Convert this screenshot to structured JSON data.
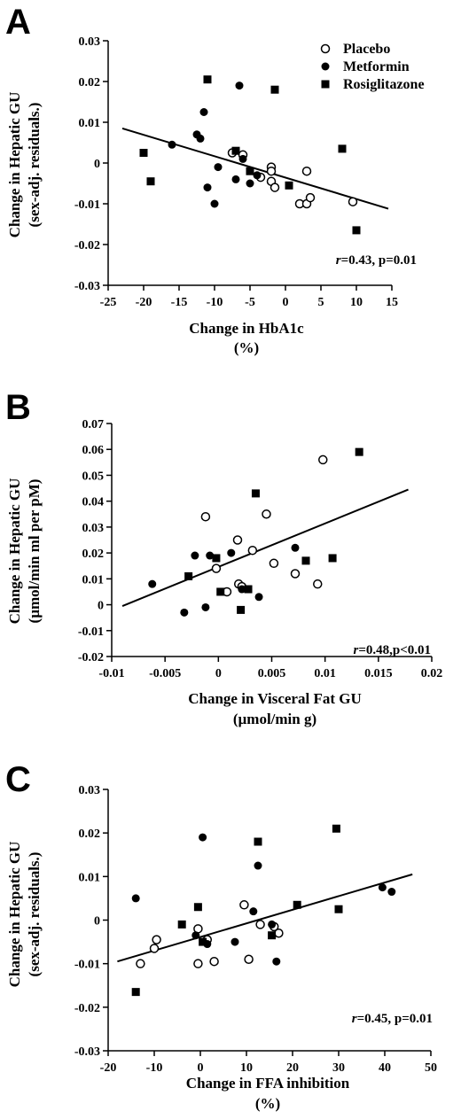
{
  "legend": {
    "placement": "top-right",
    "entries": [
      {
        "name": "Placebo",
        "marker": "open-circle"
      },
      {
        "name": "Metformin",
        "marker": "filled-circle"
      },
      {
        "name": "Rosiglitazone",
        "marker": "filled-square"
      }
    ]
  },
  "colors": {
    "ink": "#000000",
    "background": "#ffffff"
  },
  "chart_data": [
    {
      "panel": "A",
      "type": "scatter",
      "xlabel": "Change in HbA1c",
      "xunit": "(%)",
      "ylabel": "Change in Hepatic GU",
      "yunit": "(sex-adj. residuals.)",
      "xlim": [
        -25,
        15
      ],
      "ylim": [
        -0.03,
        0.03
      ],
      "xticks": [
        -25,
        -20,
        -15,
        -10,
        -5,
        0,
        5,
        10,
        15
      ],
      "yticks": [
        -0.03,
        -0.02,
        -0.01,
        0,
        0.01,
        0.02,
        0.03
      ],
      "xtick_labels": [
        "-25",
        "-20",
        "-15",
        "-10",
        "-5",
        "0",
        "5",
        "10",
        "15"
      ],
      "ytick_labels": [
        "-0.03",
        "-0.02",
        "-0.01",
        "0",
        "0.01",
        "0.02",
        "0.03"
      ],
      "grid": false,
      "annotation_r": "r",
      "annotation_rest": "=0.43, p=0.01",
      "fit_line": {
        "x": [
          -23,
          14.5
        ],
        "y": [
          0.0085,
          -0.0112
        ]
      },
      "series": [
        {
          "name": "Placebo",
          "marker": "open-circle",
          "x": [
            -7.5,
            -6,
            -2,
            -2,
            -2,
            -1.5,
            -3.5,
            2,
            3,
            3,
            3.5,
            9.5
          ],
          "y": [
            0.0025,
            0.002,
            -0.001,
            -0.002,
            -0.0045,
            -0.006,
            -0.0035,
            -0.01,
            -0.002,
            -0.01,
            -0.0085,
            -0.0095
          ]
        },
        {
          "name": "Metformin",
          "marker": "filled-circle",
          "x": [
            -16,
            -12.5,
            -12,
            -11.5,
            -11,
            -10,
            -9.5,
            -7,
            -6.5,
            -6,
            -5,
            -4
          ],
          "y": [
            0.0045,
            0.007,
            0.006,
            0.0125,
            -0.006,
            -0.01,
            -0.001,
            -0.004,
            0.019,
            0.001,
            -0.005,
            -0.003
          ]
        },
        {
          "name": "Rosiglitazone",
          "marker": "filled-square",
          "x": [
            -20,
            -19,
            -11,
            -7,
            -5,
            -1.5,
            0.5,
            8,
            10
          ],
          "y": [
            0.0025,
            -0.0045,
            0.0205,
            0.003,
            -0.002,
            0.018,
            -0.0055,
            0.0035,
            -0.0165
          ]
        }
      ]
    },
    {
      "panel": "B",
      "type": "scatter",
      "xlabel": "Change in Visceral Fat GU",
      "xunit": "(µmol/min g)",
      "ylabel": "Change in Hepatic GU",
      "yunit": "(µmol/min ml per pM)",
      "xlim": [
        -0.01,
        0.02
      ],
      "ylim": [
        -0.02,
        0.07
      ],
      "xticks": [
        -0.01,
        -0.005,
        0,
        0.005,
        0.01,
        0.015,
        0.02
      ],
      "yticks": [
        -0.02,
        -0.01,
        0,
        0.01,
        0.02,
        0.03,
        0.04,
        0.05,
        0.06,
        0.07
      ],
      "xtick_labels": [
        "-0.01",
        "-0.005",
        "0",
        "0.005",
        "0.01",
        "0.015",
        "0.02"
      ],
      "ytick_labels": [
        "-0.02",
        "-0.01",
        "0",
        "0.01",
        "0.02",
        "0.03",
        "0.04",
        "0.05",
        "0.06",
        "0.07"
      ],
      "grid": false,
      "annotation_r": "r",
      "annotation_rest": "=0.48,p<0.01",
      "fit_line": {
        "x": [
          -0.009,
          0.0178
        ],
        "y": [
          -0.0005,
          0.0445
        ]
      },
      "series": [
        {
          "name": "Placebo",
          "marker": "open-circle",
          "x": [
            -0.0012,
            -0.0002,
            0.0008,
            0.0018,
            0.0019,
            0.0022,
            0.0032,
            0.0045,
            0.0052,
            0.0072,
            0.0093,
            0.0098
          ],
          "y": [
            0.034,
            0.014,
            0.005,
            0.025,
            0.008,
            0.007,
            0.021,
            0.035,
            0.016,
            0.012,
            0.008,
            0.056
          ]
        },
        {
          "name": "Metformin",
          "marker": "filled-circle",
          "x": [
            -0.0062,
            -0.0032,
            -0.0022,
            -0.0012,
            -0.0008,
            0.0012,
            0.0022,
            0.0038,
            0.0072
          ],
          "y": [
            0.008,
            -0.003,
            0.019,
            -0.001,
            0.019,
            0.02,
            0.006,
            0.003,
            0.022
          ]
        },
        {
          "name": "Rosiglitazone",
          "marker": "filled-square",
          "x": [
            -0.0028,
            -0.0002,
            0.0002,
            0.0021,
            0.0028,
            0.0035,
            0.0082,
            0.0107,
            0.0132
          ],
          "y": [
            0.011,
            0.018,
            0.005,
            -0.002,
            0.006,
            0.043,
            0.017,
            0.018,
            0.059
          ]
        }
      ]
    },
    {
      "panel": "C",
      "type": "scatter",
      "xlabel": "Change in FFA inhibition",
      "xunit": "(%)",
      "ylabel": "Change in Hepatic GU",
      "yunit": "(sex-adj. residuals.)",
      "xlim": [
        -20,
        50
      ],
      "ylim": [
        -0.03,
        0.03
      ],
      "xticks": [
        -20,
        -10,
        0,
        10,
        20,
        30,
        40,
        50
      ],
      "yticks": [
        -0.03,
        -0.02,
        -0.01,
        0,
        0.01,
        0.02,
        0.03
      ],
      "xtick_labels": [
        "-20",
        "-10",
        "0",
        "10",
        "20",
        "30",
        "40",
        "50"
      ],
      "ytick_labels": [
        "-0.03",
        "-0.02",
        "-0.01",
        "0",
        "0.01",
        "0.02",
        "0.03"
      ],
      "grid": false,
      "annotation_r": "r",
      "annotation_rest": "=0.45, p=0.01",
      "fit_line": {
        "x": [
          -18,
          46
        ],
        "y": [
          -0.0095,
          0.0105
        ]
      },
      "series": [
        {
          "name": "Placebo",
          "marker": "open-circle",
          "x": [
            -13,
            -10,
            -9.5,
            -0.5,
            -0.5,
            1.5,
            3,
            9.5,
            10.5,
            13,
            16,
            17
          ],
          "y": [
            -0.01,
            -0.0065,
            -0.0045,
            -0.002,
            -0.01,
            -0.0045,
            -0.0095,
            0.0035,
            -0.009,
            -0.001,
            -0.0015,
            -0.003
          ]
        },
        {
          "name": "Metformin",
          "marker": "filled-circle",
          "x": [
            -14,
            -1,
            0.5,
            1.5,
            7.5,
            11.5,
            12.5,
            15.5,
            16.5,
            39.5,
            41.5
          ],
          "y": [
            0.005,
            -0.0035,
            0.019,
            -0.0055,
            -0.005,
            0.002,
            0.0125,
            -0.001,
            -0.0095,
            0.0075,
            0.0065
          ]
        },
        {
          "name": "Rosiglitazone",
          "marker": "filled-square",
          "x": [
            -14,
            -4,
            -0.5,
            0.5,
            12.5,
            15.5,
            21,
            29.5,
            30
          ],
          "y": [
            -0.0165,
            -0.001,
            0.003,
            -0.005,
            0.018,
            -0.0035,
            0.0035,
            0.021,
            0.0025
          ]
        }
      ]
    }
  ]
}
